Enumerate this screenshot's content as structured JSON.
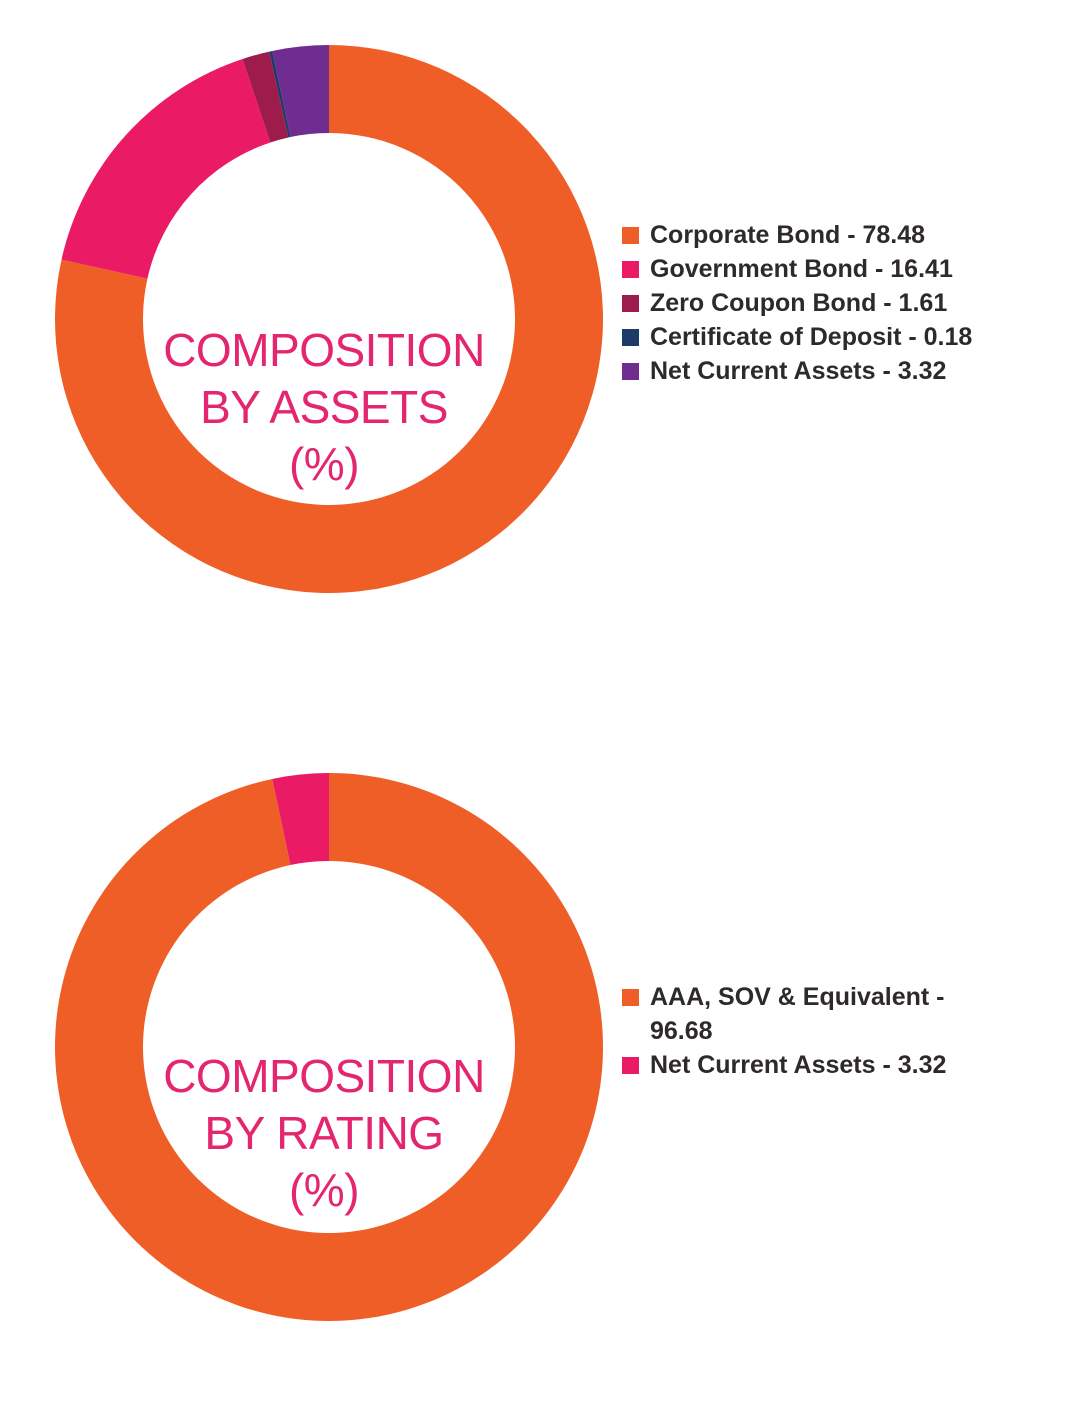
{
  "chart_data": [
    {
      "type": "pie",
      "title_lines": [
        "COMPOSITION",
        "BY ASSETS",
        "(%)"
      ],
      "categories": [
        "Corporate Bond",
        "Government Bond",
        "Zero Coupon Bond",
        "Certificate of Deposit",
        "Net Current Assets"
      ],
      "values": [
        78.48,
        16.41,
        1.61,
        0.18,
        3.32
      ],
      "legend_labels": [
        "Corporate Bond - 78.48",
        "Government Bond - 16.41",
        "Zero Coupon Bond - 1.61",
        "Certificate of Deposit - 0.18",
        "Net Current Assets - 3.32"
      ],
      "colors": [
        "#f05e28",
        "#ea1a64",
        "#9d1c4c",
        "#1e3a66",
        "#6f2c91"
      ],
      "legend_position": "right"
    },
    {
      "type": "pie",
      "title_lines": [
        "COMPOSITION",
        "BY RATING",
        "(%)"
      ],
      "categories": [
        "AAA, SOV & Equivalent",
        "Net Current Assets"
      ],
      "values": [
        96.68,
        3.32
      ],
      "legend_labels": [
        "AAA, SOV & Equivalent - 96.68",
        "Net Current Assets - 3.32"
      ],
      "colors": [
        "#f05e28",
        "#ea1a64"
      ],
      "legend_position": "right"
    }
  ]
}
